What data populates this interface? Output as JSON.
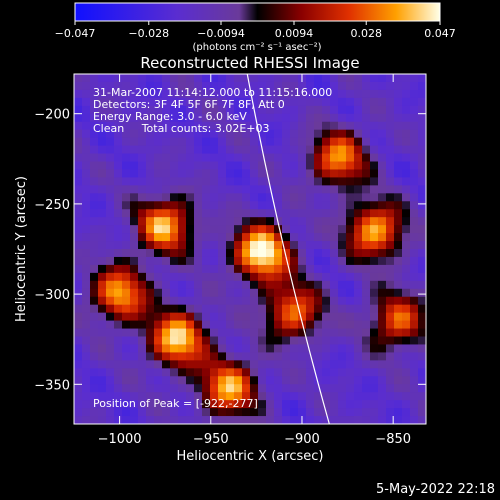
{
  "chart_data": {
    "type": "heatmap",
    "title": "Reconstructed RHESSI Image",
    "xlabel": "Heliocentric X (arcsec)",
    "ylabel": "Heliocentric Y (arcsec)",
    "xlim": [
      -1025,
      -832
    ],
    "ylim": [
      -372,
      -178
    ],
    "xticks": [
      "−1000",
      "−950",
      "−900",
      "−850"
    ],
    "xtick_values": [
      -1000,
      -950,
      -900,
      -850
    ],
    "yticks": [
      "−200",
      "−250",
      "−300",
      "−350"
    ],
    "ytick_values": [
      -200,
      -250,
      -300,
      -350
    ],
    "colorbar": {
      "ticks": [
        "−0.047",
        "−0.028",
        "−0.0094",
        "0.0094",
        "0.028",
        "0.047"
      ],
      "tick_values": [
        -0.047,
        -0.028,
        -0.0094,
        0.0094,
        0.028,
        0.047
      ],
      "label": "(photons cm⁻² s⁻¹ asec⁻²)",
      "range": [
        -0.047,
        0.047
      ]
    },
    "annotations": [
      "31-Mar-2007 11:14:12.000 to 11:15:16.000",
      "Detectors: 3F 4F 5F 6F 7F 8F, Att 0",
      "Energy Range: 3.0 - 6.0 keV",
      "Clean     Total counts: 3.02E+03",
      "Position of Peak = [-922,-277]"
    ],
    "peak": {
      "x": -922,
      "y": -277
    },
    "bright_regions": [
      {
        "x": -922,
        "y": -277,
        "value": 0.047
      },
      {
        "x": -975,
        "y": -262,
        "value": 0.035
      },
      {
        "x": -968,
        "y": -325,
        "value": 0.04
      },
      {
        "x": -860,
        "y": -265,
        "value": 0.036
      },
      {
        "x": -880,
        "y": -225,
        "value": 0.03
      },
      {
        "x": -940,
        "y": -352,
        "value": 0.034
      },
      {
        "x": -1000,
        "y": -300,
        "value": 0.033
      },
      {
        "x": -905,
        "y": -310,
        "value": 0.028
      },
      {
        "x": -848,
        "y": -315,
        "value": 0.025
      }
    ],
    "limb_curve": [
      [
        -930,
        -178
      ],
      [
        -912,
        -275
      ],
      [
        -885,
        -372
      ]
    ]
  },
  "footer": {
    "date": "5-May-2022 22:18"
  }
}
